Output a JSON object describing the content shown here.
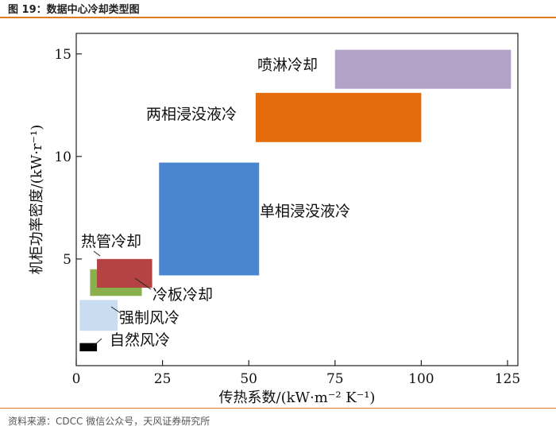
{
  "figure_title": "图 19：数据中心冷却类型图",
  "source": "资料来源：CDCC 微信公众号，天风证券研究所",
  "colors": {
    "accent": "#e07b2a"
  },
  "chart_data": {
    "type": "range-box",
    "xlabel": "传热系数/(kW·m⁻² K⁻¹)",
    "ylabel": "机柜功率密度/(kW·r⁻¹)",
    "xlim": [
      0,
      128
    ],
    "ylim": [
      -0.2,
      16
    ],
    "xticks": [
      0,
      25,
      50,
      75,
      100,
      125
    ],
    "yticks": [
      5,
      10,
      15
    ],
    "series": [
      {
        "name": "自然风冷",
        "x": [
          1,
          6
        ],
        "y": [
          0.5,
          0.9
        ],
        "color": "#000000"
      },
      {
        "name": "强制风冷",
        "x": [
          1,
          12
        ],
        "y": [
          1.5,
          3.0
        ],
        "color": "#c9dcf0"
      },
      {
        "name": "冷板冷却",
        "x": [
          4,
          19
        ],
        "y": [
          3.2,
          4.5
        ],
        "color": "#8ab04e"
      },
      {
        "name": "热管冷却",
        "x": [
          6,
          22
        ],
        "y": [
          3.6,
          5.0
        ],
        "color": "#b54343"
      },
      {
        "name": "单相浸没液冷",
        "x": [
          24,
          53
        ],
        "y": [
          4.2,
          9.7
        ],
        "color": "#4a86d0"
      },
      {
        "name": "两相浸没液冷",
        "x": [
          52,
          100
        ],
        "y": [
          10.7,
          13.1
        ],
        "color": "#e46c0a"
      },
      {
        "name": "喷淋冷却",
        "x": [
          75,
          126
        ],
        "y": [
          13.3,
          15.2
        ],
        "color": "#b3a2c8"
      }
    ]
  }
}
